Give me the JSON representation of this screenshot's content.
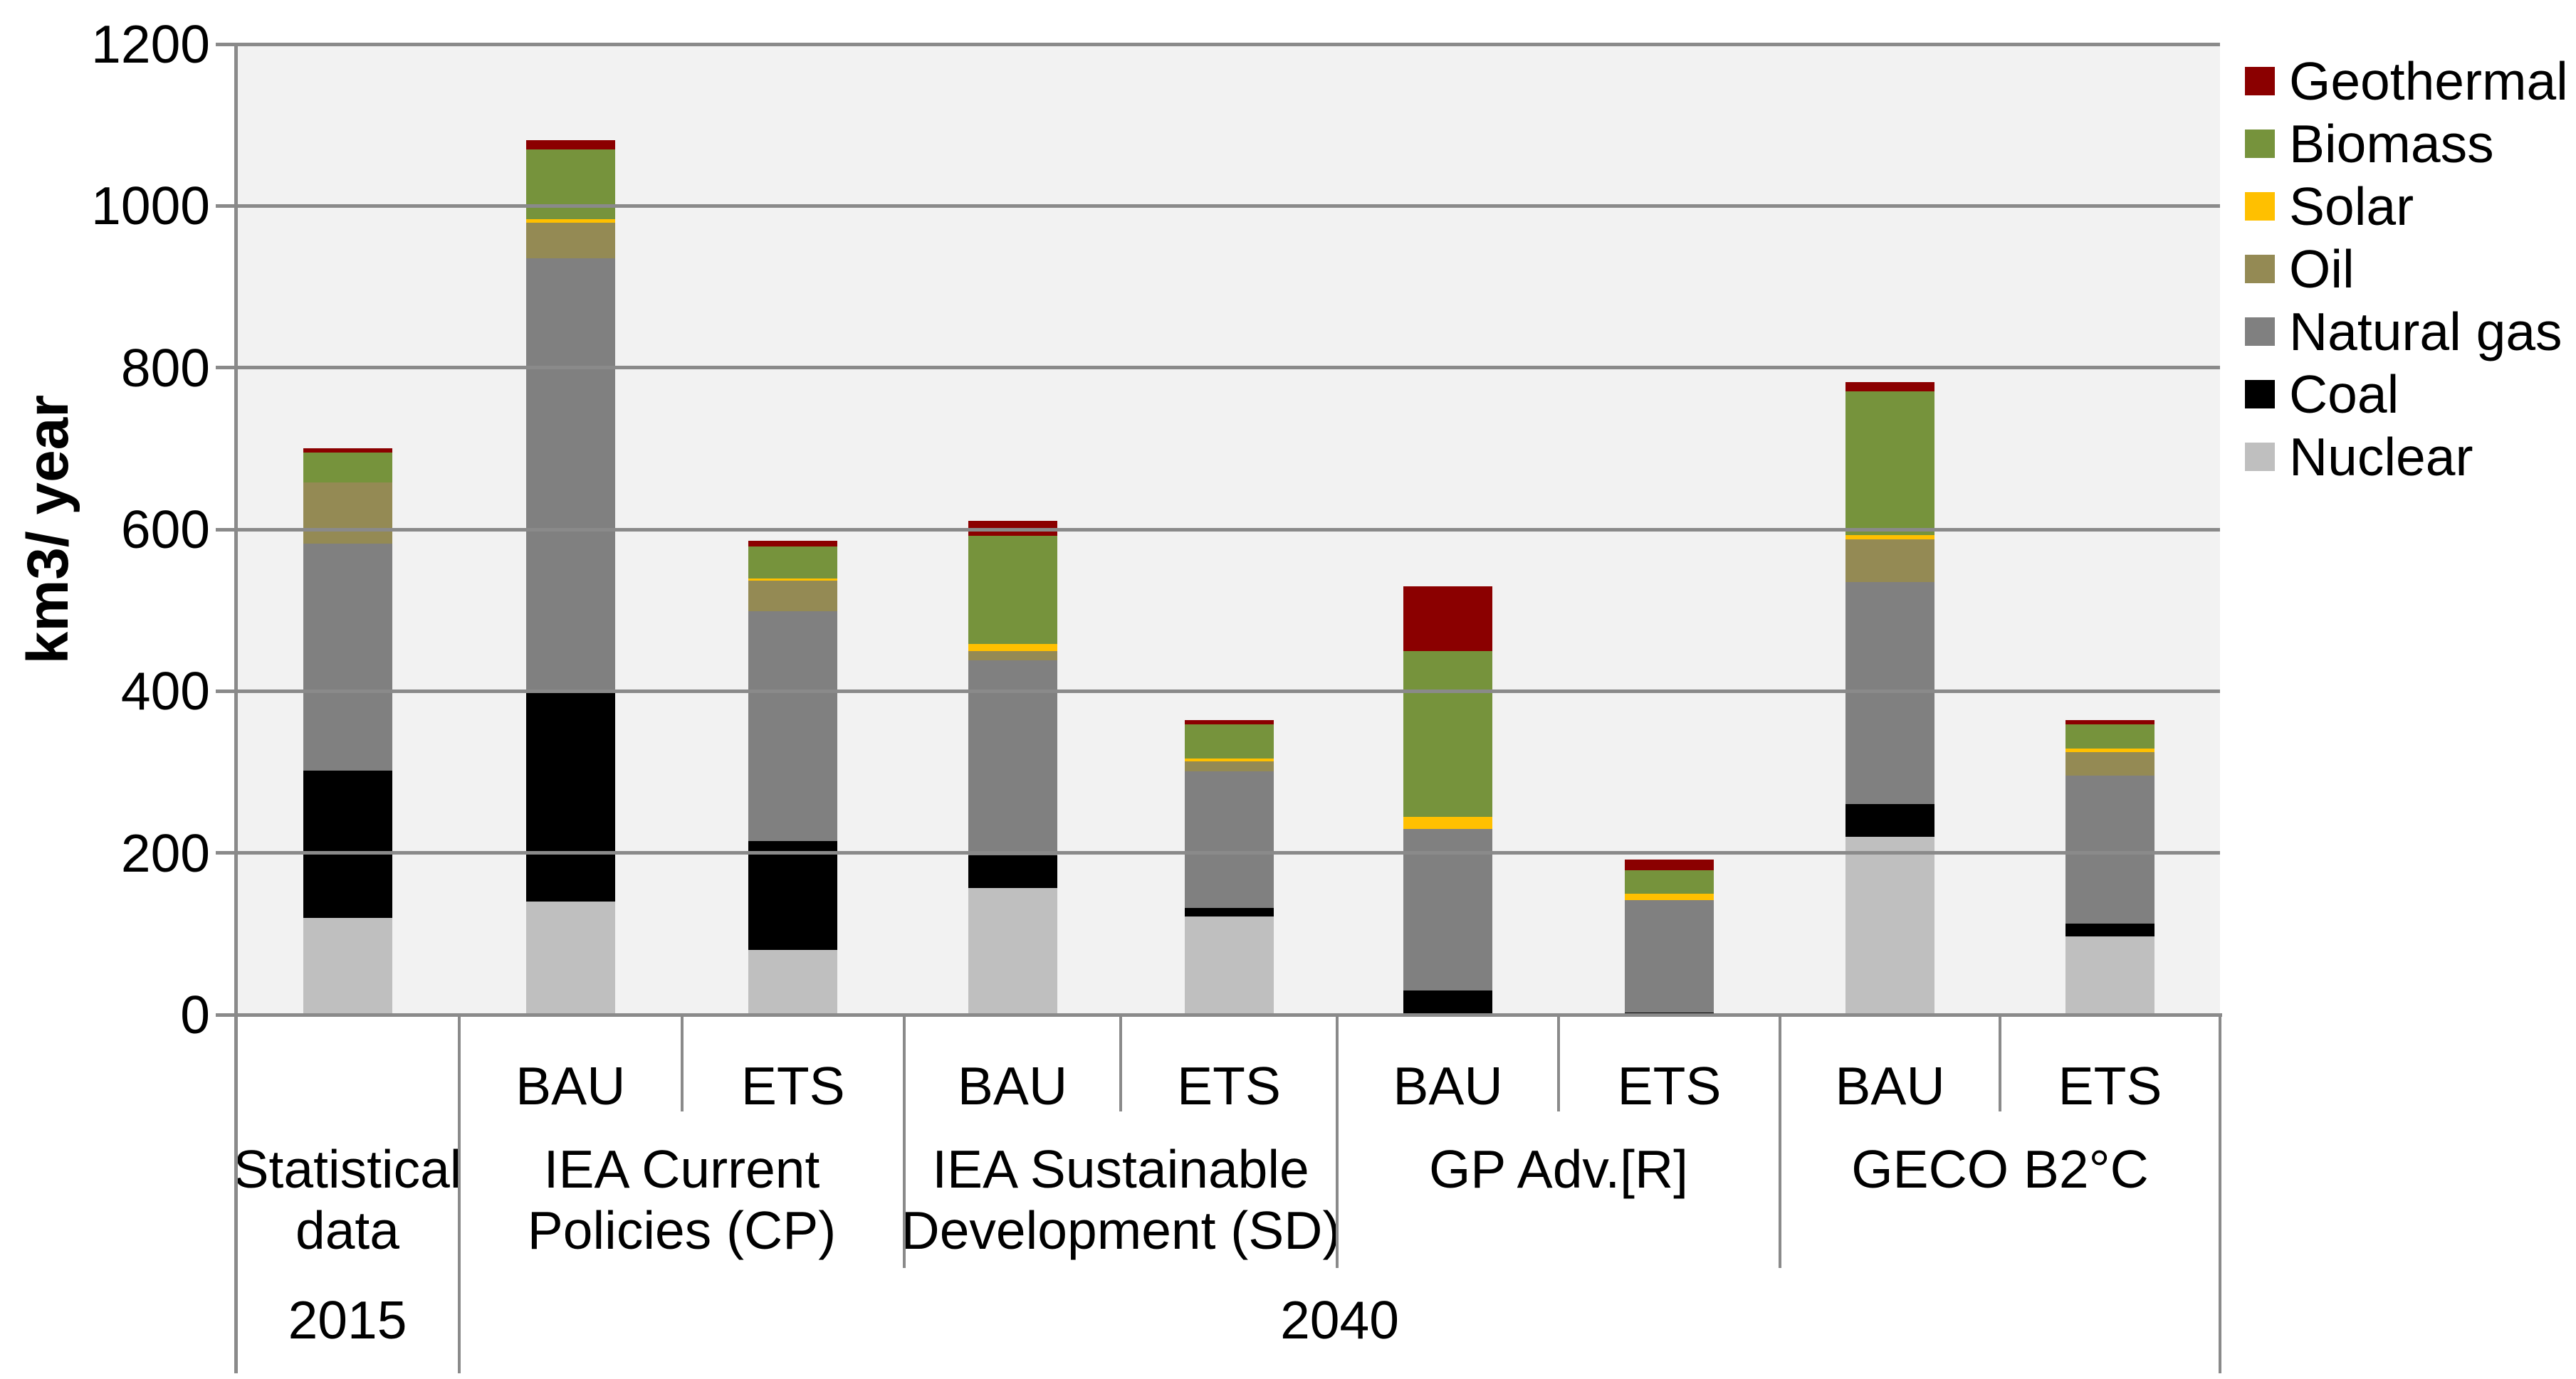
{
  "chart_data": {
    "type": "bar",
    "stacked": true,
    "title": "",
    "ylabel": "km3/ year",
    "ylim": [
      0,
      1200
    ],
    "yticks": [
      0,
      200,
      400,
      600,
      800,
      1000,
      1200
    ],
    "grid": "horizontal",
    "legend_position": "right",
    "plot_bg_color": "#F2F2F2",
    "grid_color": "#8A8A8A",
    "axis_color": "#8A8A8A",
    "text_color": "#000000",
    "legend": [
      {
        "label": "Geothermal",
        "color": "#8B0000"
      },
      {
        "label": "Biomass",
        "color": "#76933C"
      },
      {
        "label": "Solar",
        "color": "#FFC000"
      },
      {
        "label": "Oil",
        "color": "#948A54"
      },
      {
        "label": "Natural gas",
        "color": "#808080"
      },
      {
        "label": "Coal",
        "color": "#000000"
      },
      {
        "label": "Nuclear",
        "color": "#BFBFBF"
      }
    ],
    "stack_order_bottom_to_top": [
      "Nuclear",
      "Coal",
      "Natural gas",
      "Oil",
      "Solar",
      "Biomass",
      "Geothermal"
    ],
    "groups": [
      {
        "label_lines": [
          "Statistical",
          "data"
        ],
        "bars": [
          {
            "sub": "",
            "values": {
              "Nuclear": 120,
              "Coal": 182,
              "Natural gas": 280,
              "Oil": 76,
              "Solar": 0,
              "Biomass": 37,
              "Geothermal": 5
            }
          }
        ]
      },
      {
        "label_lines": [
          "IEA Current",
          "Policies (CP)"
        ],
        "bars": [
          {
            "sub": "BAU",
            "values": {
              "Nuclear": 140,
              "Coal": 262,
              "Natural gas": 533,
              "Oil": 44,
              "Solar": 5,
              "Biomass": 86,
              "Geothermal": 11
            }
          },
          {
            "sub": "ETS",
            "values": {
              "Nuclear": 80,
              "Coal": 135,
              "Natural gas": 284,
              "Oil": 38,
              "Solar": 2,
              "Biomass": 40,
              "Geothermal": 7
            }
          }
        ]
      },
      {
        "label_lines": [
          "IEA Sustainable",
          "Development (SD)"
        ],
        "bars": [
          {
            "sub": "BAU",
            "values": {
              "Nuclear": 157,
              "Coal": 40,
              "Natural gas": 241,
              "Oil": 12,
              "Solar": 8,
              "Biomass": 134,
              "Geothermal": 19
            }
          },
          {
            "sub": "ETS",
            "values": {
              "Nuclear": 121,
              "Coal": 11,
              "Natural gas": 169,
              "Oil": 12,
              "Solar": 4,
              "Biomass": 42,
              "Geothermal": 5
            }
          }
        ]
      },
      {
        "label_lines": [
          "GP Adv.[R]"
        ],
        "bars": [
          {
            "sub": "BAU",
            "values": {
              "Nuclear": 0,
              "Coal": 30,
              "Natural gas": 200,
              "Oil": 0,
              "Solar": 15,
              "Biomass": 205,
              "Geothermal": 80
            }
          },
          {
            "sub": "ETS",
            "values": {
              "Nuclear": 0,
              "Coal": 3,
              "Natural gas": 139,
              "Oil": 0,
              "Solar": 8,
              "Biomass": 29,
              "Geothermal": 13
            }
          }
        ]
      },
      {
        "label_lines": [
          "GECO B2°C"
        ],
        "bars": [
          {
            "sub": "BAU",
            "values": {
              "Nuclear": 220,
              "Coal": 40,
              "Natural gas": 275,
              "Oil": 53,
              "Solar": 5,
              "Biomass": 178,
              "Geothermal": 11
            }
          },
          {
            "sub": "ETS",
            "values": {
              "Nuclear": 97,
              "Coal": 16,
              "Natural gas": 183,
              "Oil": 29,
              "Solar": 4,
              "Biomass": 30,
              "Geothermal": 5
            }
          }
        ]
      }
    ],
    "year_bands": [
      {
        "label": "2015",
        "group_span": [
          0,
          0
        ]
      },
      {
        "label": "2040",
        "group_span": [
          1,
          4
        ]
      }
    ]
  }
}
